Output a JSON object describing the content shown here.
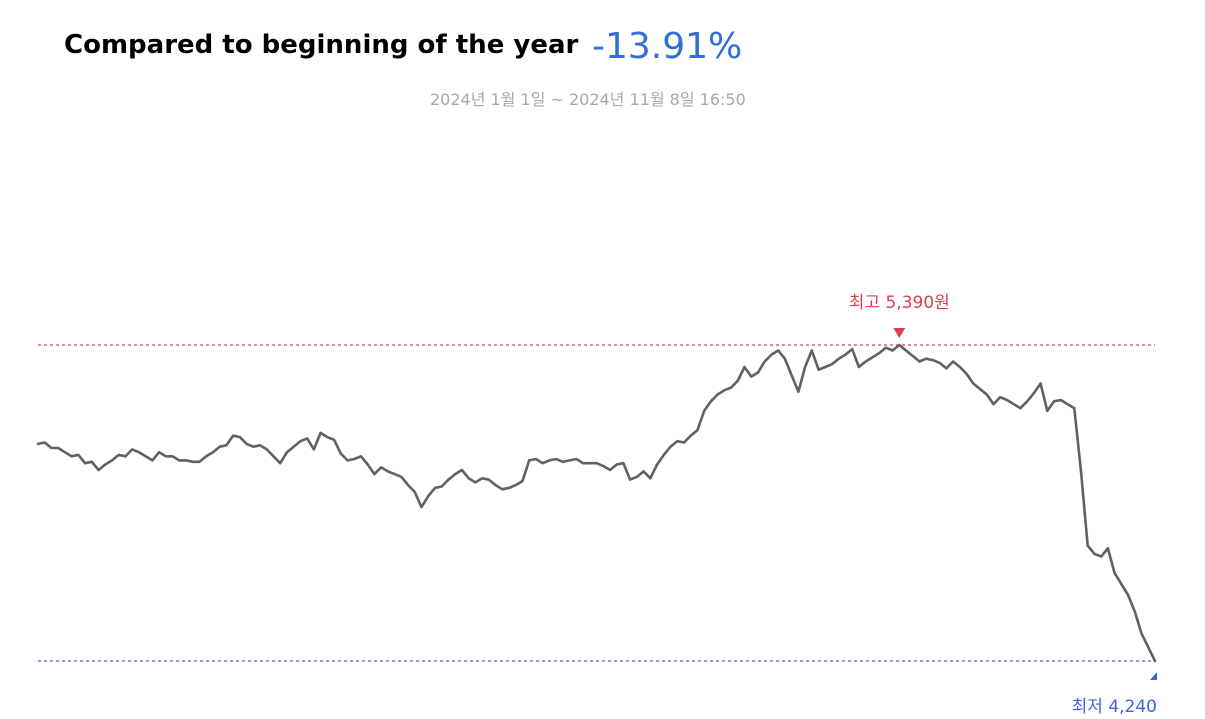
{
  "header": {
    "title": "Compared to beginning of the year",
    "change": "-13.91%",
    "period": "2024년 1월 1일 ~ 2024년 11월 8일 16:50"
  },
  "colors": {
    "line": "#5f6163",
    "high": "#d9414f",
    "low": "#3b66d8",
    "change": "#2f6fd6",
    "period": "#a8a8a8"
  },
  "chart_data": {
    "type": "line",
    "x_start": "2024-01-01",
    "x_end": "2024-11-08",
    "ylim": [
      4240,
      5390
    ],
    "high": {
      "label": "최고 5,390원",
      "value": 5390
    },
    "low": {
      "label": "최저 4,240",
      "value": 4240
    },
    "grid": false,
    "series": [
      {
        "values": [
          5030,
          5035,
          5015,
          5015,
          5000,
          4985,
          4990,
          4960,
          4965,
          4935,
          4955,
          4970,
          4990,
          4985,
          5010,
          5000,
          4985,
          4970,
          5000,
          4985,
          4985,
          4970,
          4970,
          4965,
          4965,
          4985,
          5000,
          5020,
          5025,
          5060,
          5055,
          5030,
          5020,
          5025,
          5010,
          4985,
          4960,
          5000,
          5020,
          5040,
          5050,
          5010,
          5070,
          5055,
          5045,
          4995,
          4970,
          4975,
          4985,
          4955,
          4920,
          4945,
          4930,
          4920,
          4910,
          4880,
          4855,
          4800,
          4840,
          4870,
          4875,
          4900,
          4920,
          4935,
          4905,
          4890,
          4905,
          4900,
          4880,
          4865,
          4870,
          4880,
          4895,
          4970,
          4975,
          4960,
          4970,
          4975,
          4965,
          4970,
          4975,
          4960,
          4960,
          4960,
          4950,
          4935,
          4955,
          4960,
          4900,
          4910,
          4930,
          4905,
          4955,
          4990,
          5020,
          5040,
          5035,
          5060,
          5080,
          5150,
          5185,
          5210,
          5225,
          5235,
          5260,
          5310,
          5275,
          5290,
          5330,
          5355,
          5370,
          5340,
          5280,
          5220,
          5310,
          5370,
          5300,
          5310,
          5320,
          5340,
          5355,
          5375,
          5310,
          5330,
          5345,
          5360,
          5380,
          5370,
          5390,
          5370,
          5350,
          5330,
          5340,
          5335,
          5325,
          5305,
          5330,
          5310,
          5285,
          5250,
          5230,
          5210,
          5175,
          5200,
          5190,
          5175,
          5160,
          5185,
          5215,
          5250,
          5150,
          5185,
          5190,
          5175,
          5160,
          4930,
          4660,
          4630,
          4620,
          4650,
          4560,
          4520,
          4480,
          4420,
          4340,
          4290,
          4240
        ]
      }
    ]
  }
}
